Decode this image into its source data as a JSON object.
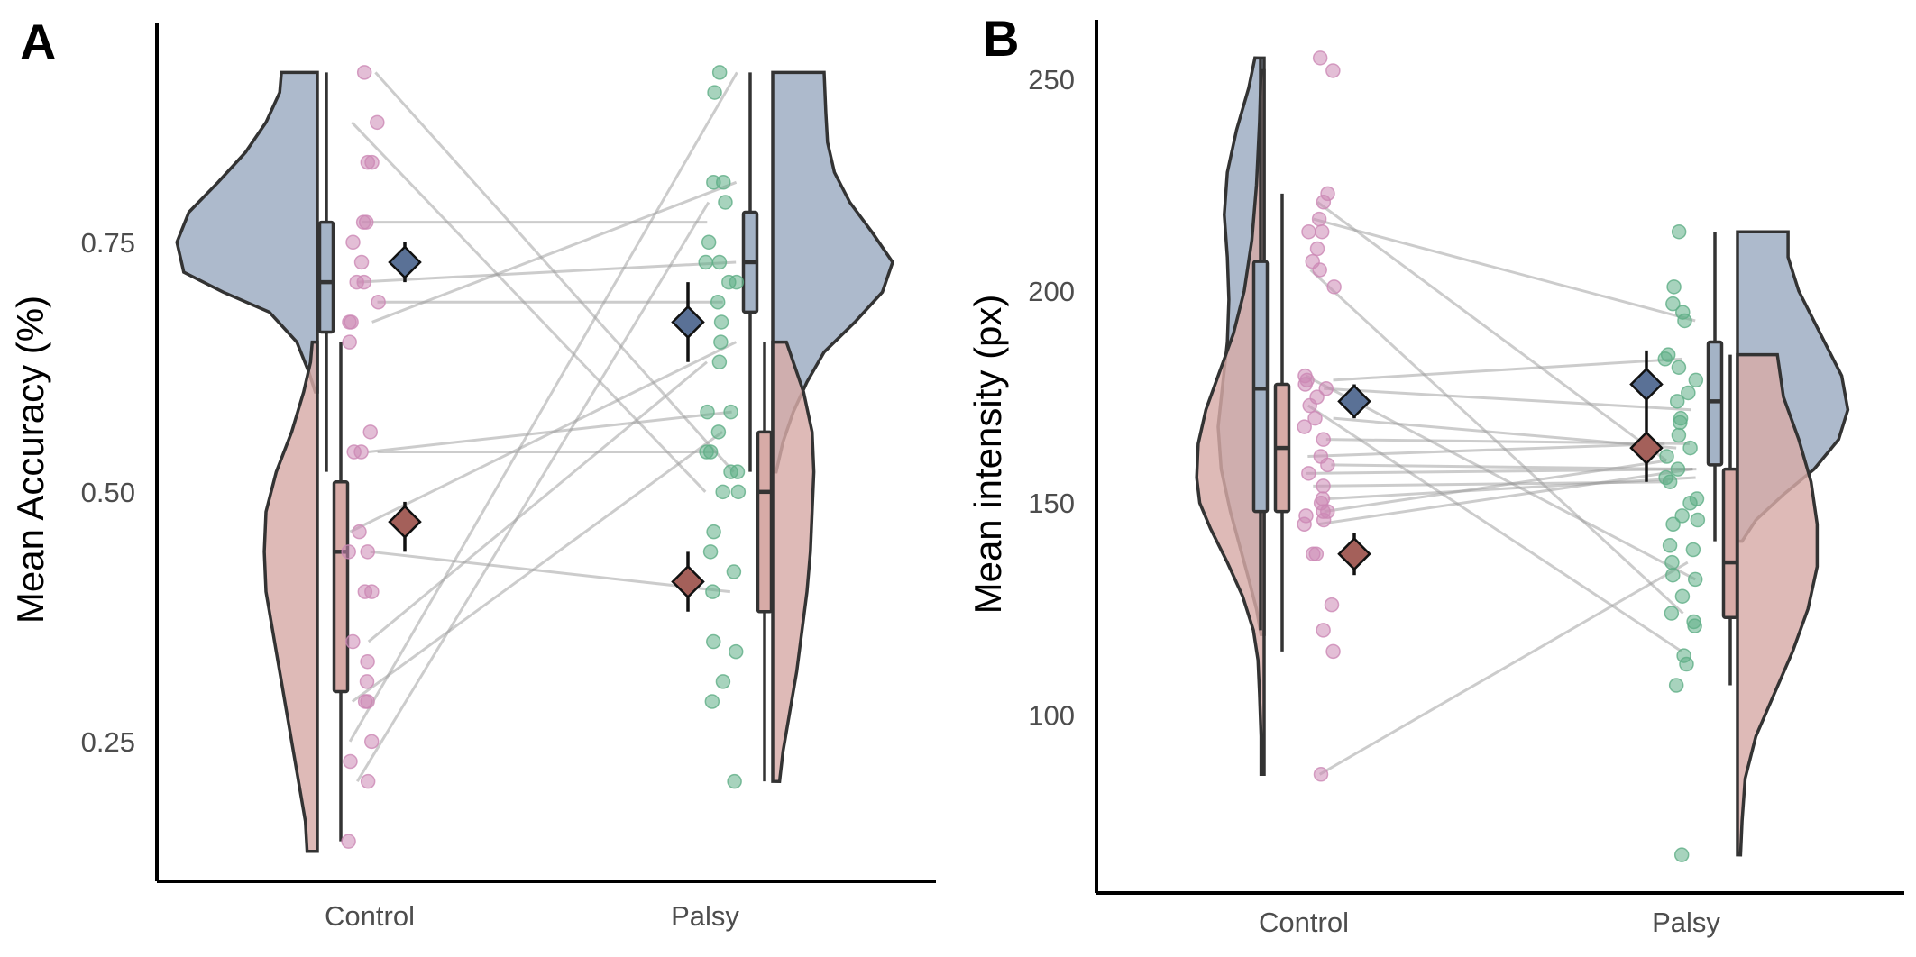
{
  "chart_data": [
    {
      "type": "raincloud",
      "panel_label": "A",
      "ylabel": "Mean Accuracy (%)",
      "categories": [
        "Control",
        "Palsy"
      ],
      "yticks": [
        0.25,
        0.5,
        0.75
      ],
      "ytick_labels": [
        "0.25",
        "0.50",
        "0.75"
      ],
      "ylim": [
        0.11,
        0.97
      ],
      "grid": false,
      "legend": "none",
      "series_colors": {
        "blue": "#a4b3c6",
        "red": "#d7aba7"
      },
      "group_point_colors": {
        "Control": "#cc88b5",
        "Palsy": "#5fae86"
      },
      "density": {
        "Control": {
          "blue": {
            "side": "left",
            "ymin": 0.6,
            "ymax": 0.92,
            "width": [
              [
                0.6,
                0.012
              ],
              [
                0.62,
                0.05
              ],
              [
                0.65,
                0.12
              ],
              [
                0.68,
                0.28
              ],
              [
                0.7,
                0.55
              ],
              [
                0.72,
                0.78
              ],
              [
                0.75,
                0.82
              ],
              [
                0.78,
                0.75
              ],
              [
                0.81,
                0.58
              ],
              [
                0.84,
                0.42
              ],
              [
                0.87,
                0.3
              ],
              [
                0.9,
                0.22
              ],
              [
                0.92,
                0.21
              ]
            ]
          },
          "red": {
            "side": "left",
            "ymin": 0.14,
            "ymax": 0.65,
            "width": [
              [
                0.14,
                0.06
              ],
              [
                0.17,
                0.07
              ],
              [
                0.2,
                0.1
              ],
              [
                0.24,
                0.14
              ],
              [
                0.28,
                0.18
              ],
              [
                0.32,
                0.22
              ],
              [
                0.36,
                0.26
              ],
              [
                0.4,
                0.3
              ],
              [
                0.44,
                0.31
              ],
              [
                0.48,
                0.3
              ],
              [
                0.52,
                0.24
              ],
              [
                0.56,
                0.15
              ],
              [
                0.6,
                0.08
              ],
              [
                0.63,
                0.04
              ],
              [
                0.65,
                0.03
              ]
            ]
          }
        },
        "Palsy": {
          "blue": {
            "side": "right",
            "ymin": 0.52,
            "ymax": 0.92,
            "width": [
              [
                0.52,
                0.02
              ],
              [
                0.55,
                0.06
              ],
              [
                0.58,
                0.12
              ],
              [
                0.61,
                0.2
              ],
              [
                0.64,
                0.3
              ],
              [
                0.67,
                0.48
              ],
              [
                0.7,
                0.64
              ],
              [
                0.73,
                0.7
              ],
              [
                0.76,
                0.58
              ],
              [
                0.79,
                0.45
              ],
              [
                0.82,
                0.36
              ],
              [
                0.85,
                0.32
              ],
              [
                0.88,
                0.31
              ],
              [
                0.92,
                0.3
              ]
            ]
          },
          "red": {
            "side": "right",
            "ymin": 0.21,
            "ymax": 0.65,
            "width": [
              [
                0.21,
                0.04
              ],
              [
                0.24,
                0.06
              ],
              [
                0.28,
                0.1
              ],
              [
                0.32,
                0.14
              ],
              [
                0.36,
                0.17
              ],
              [
                0.4,
                0.2
              ],
              [
                0.44,
                0.22
              ],
              [
                0.48,
                0.23
              ],
              [
                0.52,
                0.24
              ],
              [
                0.56,
                0.23
              ],
              [
                0.6,
                0.18
              ],
              [
                0.63,
                0.12
              ],
              [
                0.65,
                0.08
              ]
            ]
          }
        }
      },
      "boxplots": {
        "Control": {
          "blue": {
            "min": 0.52,
            "q1": 0.66,
            "median": 0.71,
            "q3": 0.77,
            "max": 0.92
          },
          "red": {
            "min": 0.15,
            "q1": 0.3,
            "median": 0.44,
            "q3": 0.51,
            "max": 0.65
          }
        },
        "Palsy": {
          "blue": {
            "min": 0.52,
            "q1": 0.68,
            "median": 0.73,
            "q3": 0.78,
            "max": 0.92
          },
          "red": {
            "min": 0.21,
            "q1": 0.38,
            "median": 0.5,
            "q3": 0.56,
            "max": 0.65
          }
        }
      },
      "means": {
        "Control": {
          "blue": {
            "mean": 0.73,
            "lo": 0.71,
            "hi": 0.75
          },
          "red": {
            "mean": 0.47,
            "lo": 0.44,
            "hi": 0.49
          }
        },
        "Palsy": {
          "blue": {
            "mean": 0.67,
            "lo": 0.63,
            "hi": 0.71
          },
          "red": {
            "mean": 0.41,
            "lo": 0.38,
            "hi": 0.44
          }
        }
      },
      "points": {
        "Control": [
          0.92,
          0.87,
          0.83,
          0.83,
          0.77,
          0.77,
          0.75,
          0.73,
          0.71,
          0.71,
          0.69,
          0.67,
          0.67,
          0.65,
          0.56,
          0.54,
          0.54,
          0.46,
          0.44,
          0.44,
          0.4,
          0.4,
          0.35,
          0.33,
          0.31,
          0.29,
          0.29,
          0.25,
          0.23,
          0.21,
          0.15
        ],
        "Palsy": [
          0.92,
          0.9,
          0.81,
          0.81,
          0.79,
          0.75,
          0.73,
          0.73,
          0.71,
          0.71,
          0.69,
          0.67,
          0.65,
          0.63,
          0.58,
          0.58,
          0.56,
          0.54,
          0.54,
          0.52,
          0.52,
          0.5,
          0.5,
          0.46,
          0.44,
          0.42,
          0.4,
          0.35,
          0.34,
          0.31,
          0.29,
          0.21
        ]
      },
      "pairs": [
        [
          0.77,
          0.77
        ],
        [
          0.71,
          0.73
        ],
        [
          0.69,
          0.69
        ],
        [
          0.54,
          0.58
        ],
        [
          0.54,
          0.54
        ],
        [
          0.44,
          0.4
        ],
        [
          0.87,
          0.5
        ],
        [
          0.92,
          0.52
        ],
        [
          0.25,
          0.92
        ],
        [
          0.21,
          0.79
        ],
        [
          0.67,
          0.81
        ],
        [
          0.35,
          0.63
        ],
        [
          0.29,
          0.56
        ],
        [
          0.46,
          0.65
        ]
      ]
    },
    {
      "type": "raincloud",
      "panel_label": "B",
      "ylabel": "Mean intensity (px)",
      "categories": [
        "Control",
        "Palsy"
      ],
      "yticks": [
        100,
        150,
        200,
        250
      ],
      "ytick_labels": [
        "100",
        "150",
        "200",
        "250"
      ],
      "ylim": [
        58,
        264
      ],
      "grid": false,
      "legend": "none",
      "series_colors": {
        "blue": "#a4b3c6",
        "red": "#d7aba7"
      },
      "group_point_colors": {
        "Control": "#cc88b5",
        "Palsy": "#5fae86"
      },
      "density": {
        "Control": {
          "blue": {
            "side": "left",
            "ymin": 119,
            "ymax": 255,
            "width": [
              [
                119,
                0.02
              ],
              [
                125,
                0.05
              ],
              [
                132,
                0.1
              ],
              [
                140,
                0.16
              ],
              [
                148,
                0.22
              ],
              [
                158,
                0.28
              ],
              [
                168,
                0.3
              ],
              [
                178,
                0.27
              ],
              [
                188,
                0.24
              ],
              [
                198,
                0.23
              ],
              [
                208,
                0.24
              ],
              [
                218,
                0.26
              ],
              [
                228,
                0.24
              ],
              [
                238,
                0.18
              ],
              [
                248,
                0.1
              ],
              [
                255,
                0.06
              ]
            ]
          },
          "red": {
            "side": "left",
            "ymin": 86,
            "ymax": 252,
            "width": [
              [
                86,
                0.02
              ],
              [
                95,
                0.02
              ],
              [
                105,
                0.03
              ],
              [
                113,
                0.04
              ],
              [
                120,
                0.07
              ],
              [
                128,
                0.14
              ],
              [
                136,
                0.24
              ],
              [
                144,
                0.35
              ],
              [
                150,
                0.42
              ],
              [
                156,
                0.44
              ],
              [
                164,
                0.43
              ],
              [
                172,
                0.38
              ],
              [
                180,
                0.3
              ],
              [
                190,
                0.2
              ],
              [
                200,
                0.13
              ],
              [
                212,
                0.08
              ],
              [
                225,
                0.05
              ],
              [
                240,
                0.03
              ],
              [
                252,
                0.02
              ]
            ]
          }
        },
        "Palsy": {
          "blue": {
            "side": "right",
            "ymin": 141,
            "ymax": 214,
            "width": [
              [
                141,
                0.03
              ],
              [
                146,
                0.12
              ],
              [
                152,
                0.3
              ],
              [
                158,
                0.5
              ],
              [
                165,
                0.66
              ],
              [
                172,
                0.72
              ],
              [
                180,
                0.68
              ],
              [
                190,
                0.54
              ],
              [
                200,
                0.4
              ],
              [
                208,
                0.33
              ],
              [
                214,
                0.33
              ]
            ]
          },
          "red": {
            "side": "right",
            "ymin": 67,
            "ymax": 185,
            "width": [
              [
                67,
                0.02
              ],
              [
                75,
                0.03
              ],
              [
                85,
                0.05
              ],
              [
                95,
                0.12
              ],
              [
                105,
                0.24
              ],
              [
                115,
                0.36
              ],
              [
                125,
                0.46
              ],
              [
                135,
                0.52
              ],
              [
                145,
                0.52
              ],
              [
                155,
                0.48
              ],
              [
                165,
                0.4
              ],
              [
                175,
                0.3
              ],
              [
                185,
                0.26
              ]
            ]
          }
        }
      },
      "boxplots": {
        "Control": {
          "blue": {
            "min": 120,
            "q1": 148,
            "median": 177,
            "q3": 207,
            "max": 255
          },
          "red": {
            "min": 115,
            "q1": 148,
            "median": 163,
            "q3": 178,
            "max": 223
          }
        },
        "Palsy": {
          "blue": {
            "min": 141,
            "q1": 159,
            "median": 174,
            "q3": 188,
            "max": 214
          },
          "red": {
            "min": 107,
            "q1": 123,
            "median": 136,
            "q3": 158,
            "max": 185
          }
        }
      },
      "means": {
        "Control": {
          "blue": {
            "mean": 174,
            "lo": 170,
            "hi": 178
          },
          "red": {
            "mean": 138,
            "lo": 133,
            "hi": 143
          }
        },
        "Palsy": {
          "blue": {
            "mean": 178,
            "lo": 171,
            "hi": 186
          },
          "red": {
            "mean": 163,
            "lo": 155,
            "hi": 171
          }
        }
      },
      "points": {
        "Control": [
          255,
          252,
          223,
          221,
          217,
          214,
          214,
          210,
          207,
          205,
          201,
          180,
          179,
          178,
          177,
          175,
          173,
          170,
          168,
          165,
          161,
          159,
          157,
          154,
          151,
          150,
          148,
          148,
          147,
          146,
          145,
          138,
          138,
          126,
          120,
          115,
          86
        ],
        "Palsy": [
          214,
          201,
          197,
          195,
          193,
          185,
          184,
          182,
          179,
          176,
          174,
          170,
          169,
          166,
          163,
          161,
          158,
          156,
          155,
          151,
          150,
          147,
          146,
          145,
          140,
          139,
          136,
          133,
          132,
          128,
          124,
          122,
          121,
          114,
          112,
          107,
          67
        ]
      },
      "pairs": [
        [
          221,
          160
        ],
        [
          217,
          193
        ],
        [
          179,
          184
        ],
        [
          177,
          172
        ],
        [
          170,
          163
        ],
        [
          165,
          164
        ],
        [
          161,
          164
        ],
        [
          159,
          158
        ],
        [
          157,
          158
        ],
        [
          154,
          155
        ],
        [
          151,
          156
        ],
        [
          148,
          160
        ],
        [
          173,
          115
        ],
        [
          180,
          132
        ],
        [
          205,
          124
        ],
        [
          86,
          136
        ],
        [
          145,
          158
        ]
      ]
    }
  ]
}
